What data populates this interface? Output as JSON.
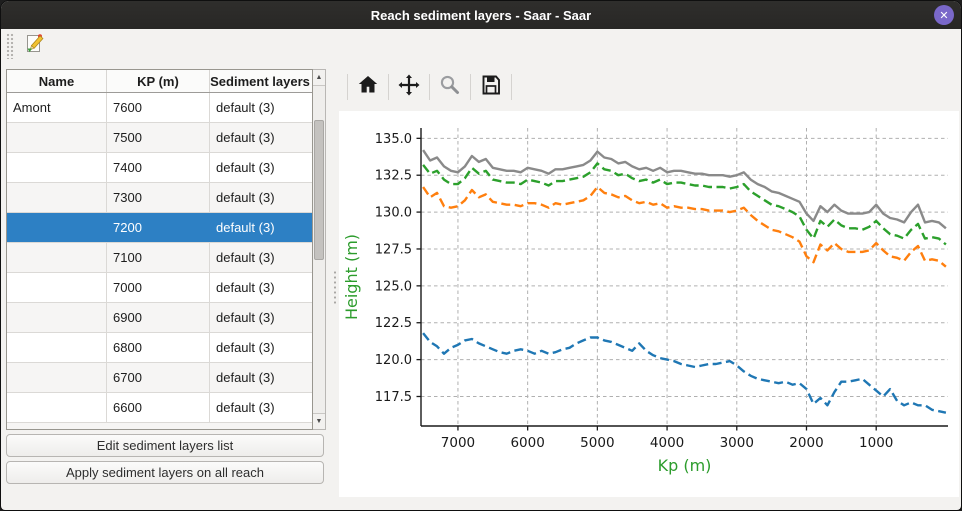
{
  "window": {
    "title": "Reach sediment layers - Saar - Saar",
    "close_glyph": "✕"
  },
  "main_toolbar": {
    "tools": [
      {
        "name": "edit-sediment-layers",
        "icon": "pencil-document-icon"
      }
    ]
  },
  "table": {
    "columns": [
      "Name",
      "KP (m)",
      "Sediment layers"
    ],
    "rows": [
      {
        "name": "Amont",
        "kp": "7600",
        "layers": "default (3)",
        "selected": false
      },
      {
        "name": "",
        "kp": "7500",
        "layers": "default (3)",
        "selected": false
      },
      {
        "name": "",
        "kp": "7400",
        "layers": "default (3)",
        "selected": false
      },
      {
        "name": "",
        "kp": "7300",
        "layers": "default (3)",
        "selected": false
      },
      {
        "name": "",
        "kp": "7200",
        "layers": "default (3)",
        "selected": true
      },
      {
        "name": "",
        "kp": "7100",
        "layers": "default (3)",
        "selected": false
      },
      {
        "name": "",
        "kp": "7000",
        "layers": "default (3)",
        "selected": false
      },
      {
        "name": "",
        "kp": "6900",
        "layers": "default (3)",
        "selected": false
      },
      {
        "name": "",
        "kp": "6800",
        "layers": "default (3)",
        "selected": false
      },
      {
        "name": "",
        "kp": "6700",
        "layers": "default (3)",
        "selected": false
      },
      {
        "name": "",
        "kp": "6600",
        "layers": "default (3)",
        "selected": false
      }
    ]
  },
  "buttons": {
    "edit": "Edit sediment layers list",
    "apply": "Apply sediment layers on all reach"
  },
  "plot_toolbar": {
    "tools": [
      "home",
      "pan",
      "zoom",
      "save"
    ],
    "disabled": [
      "zoom"
    ]
  },
  "colors": {
    "selection": "#2d80c4",
    "close_button": "#7a68c9",
    "axis_label_green": "#2c9c2c"
  },
  "chart_data": {
    "type": "line",
    "title": "",
    "xlabel": "Kp (m)",
    "ylabel": "Height (m)",
    "x_reversed": true,
    "xlim": [
      7530,
      -30
    ],
    "ylim": [
      115.5,
      135.7
    ],
    "xticks": [
      7000,
      6000,
      5000,
      4000,
      3000,
      2000,
      1000
    ],
    "yticks": [
      117.5,
      120.0,
      122.5,
      125.0,
      127.5,
      130.0,
      132.5,
      135.0
    ],
    "grid": true,
    "legend": null,
    "kp": [
      7500,
      7400,
      7300,
      7200,
      7100,
      7000,
      6900,
      6800,
      6700,
      6600,
      6500,
      6400,
      6300,
      6200,
      6100,
      6000,
      5900,
      5800,
      5700,
      5600,
      5500,
      5400,
      5300,
      5200,
      5100,
      5000,
      4900,
      4800,
      4700,
      4600,
      4500,
      4400,
      4300,
      4200,
      4100,
      4000,
      3900,
      3800,
      3700,
      3600,
      3500,
      3400,
      3300,
      3200,
      3100,
      3000,
      2900,
      2800,
      2700,
      2600,
      2500,
      2400,
      2300,
      2200,
      2100,
      2000,
      1900,
      1800,
      1700,
      1600,
      1500,
      1400,
      1300,
      1200,
      1100,
      1000,
      900,
      800,
      700,
      600,
      500,
      400,
      300,
      200,
      100,
      0
    ],
    "series": [
      {
        "name": "blue-dashed-bottom-layer",
        "color": "#1f77b4",
        "style": "dashed",
        "values": [
          121.8,
          121.2,
          120.9,
          120.4,
          120.8,
          121.0,
          121.3,
          121.4,
          121.1,
          120.9,
          120.7,
          120.5,
          120.4,
          120.6,
          120.7,
          120.6,
          120.4,
          120.6,
          120.4,
          120.5,
          120.7,
          120.8,
          121.1,
          121.3,
          121.5,
          121.5,
          121.3,
          121.2,
          121.0,
          120.8,
          120.6,
          121.1,
          120.6,
          120.3,
          120.1,
          120.0,
          119.9,
          119.7,
          119.6,
          119.5,
          119.6,
          119.7,
          119.7,
          119.8,
          119.9,
          119.6,
          119.2,
          118.9,
          118.7,
          118.6,
          118.5,
          118.4,
          118.5,
          118.3,
          118.4,
          118.0,
          117.0,
          117.4,
          116.9,
          117.8,
          118.5,
          118.5,
          118.6,
          118.7,
          118.3,
          117.9,
          117.5,
          118.0,
          117.2,
          116.9,
          117.1,
          116.9,
          116.9,
          116.6,
          116.5,
          116.4
        ]
      },
      {
        "name": "orange-dashed-layer",
        "color": "#ff7f0e",
        "style": "dashed",
        "values": [
          131.7,
          131.0,
          131.3,
          130.4,
          130.3,
          130.4,
          130.8,
          131.5,
          131.0,
          131.2,
          130.7,
          130.6,
          130.5,
          130.5,
          130.4,
          130.6,
          130.6,
          130.5,
          130.3,
          130.6,
          130.5,
          130.6,
          130.7,
          130.8,
          131.1,
          131.7,
          131.3,
          131.2,
          131.0,
          131.1,
          130.8,
          130.6,
          130.7,
          130.5,
          130.6,
          130.3,
          130.4,
          130.3,
          130.3,
          130.2,
          130.2,
          130.1,
          130.1,
          130.1,
          130.0,
          130.1,
          130.3,
          129.8,
          129.4,
          129.1,
          128.8,
          128.7,
          128.5,
          128.3,
          128.0,
          127.0,
          126.6,
          127.8,
          127.4,
          127.9,
          127.5,
          127.3,
          127.3,
          127.3,
          127.4,
          127.9,
          127.4,
          127.0,
          126.9,
          126.7,
          127.3,
          127.7,
          126.7,
          126.8,
          126.7,
          126.3
        ]
      },
      {
        "name": "green-dashed-layer",
        "color": "#2ca02c",
        "style": "dashed",
        "values": [
          133.2,
          132.6,
          132.8,
          132.2,
          131.9,
          131.9,
          132.3,
          133.0,
          132.6,
          132.8,
          132.2,
          132.1,
          132.0,
          132.0,
          131.9,
          132.2,
          132.1,
          132.0,
          131.8,
          132.1,
          132.1,
          132.2,
          132.3,
          132.4,
          132.7,
          133.3,
          132.9,
          132.8,
          132.5,
          132.6,
          132.3,
          132.1,
          132.2,
          132.0,
          132.2,
          131.9,
          132.0,
          132.0,
          131.9,
          131.8,
          131.8,
          131.7,
          131.7,
          131.7,
          131.6,
          131.7,
          131.9,
          131.4,
          131.1,
          130.8,
          130.5,
          130.4,
          130.2,
          130.0,
          129.7,
          128.8,
          128.2,
          129.4,
          129.0,
          129.5,
          129.1,
          128.9,
          128.9,
          128.8,
          129.0,
          129.4,
          128.9,
          128.5,
          128.4,
          128.2,
          128.8,
          129.2,
          128.2,
          128.3,
          128.2,
          127.8
        ]
      },
      {
        "name": "gray-solid-top-layer",
        "color": "#8a8a8a",
        "style": "solid",
        "values": [
          134.2,
          133.5,
          133.7,
          133.1,
          132.8,
          132.7,
          133.1,
          133.8,
          133.4,
          133.6,
          133.0,
          132.9,
          132.8,
          132.8,
          132.7,
          133.0,
          132.9,
          132.8,
          132.6,
          132.9,
          132.9,
          133.0,
          133.1,
          133.2,
          133.5,
          134.1,
          133.7,
          133.6,
          133.3,
          133.4,
          133.1,
          132.9,
          133.0,
          132.8,
          133.0,
          132.7,
          132.8,
          132.8,
          132.7,
          132.6,
          132.6,
          132.5,
          132.5,
          132.5,
          132.4,
          132.5,
          132.7,
          132.2,
          131.9,
          131.7,
          131.4,
          131.3,
          131.1,
          130.9,
          130.7,
          129.9,
          129.4,
          130.4,
          130.0,
          130.5,
          130.1,
          129.9,
          129.9,
          129.9,
          130.0,
          130.5,
          129.9,
          129.6,
          129.5,
          129.3,
          130.0,
          130.5,
          129.3,
          129.4,
          129.3,
          128.9
        ]
      }
    ]
  }
}
